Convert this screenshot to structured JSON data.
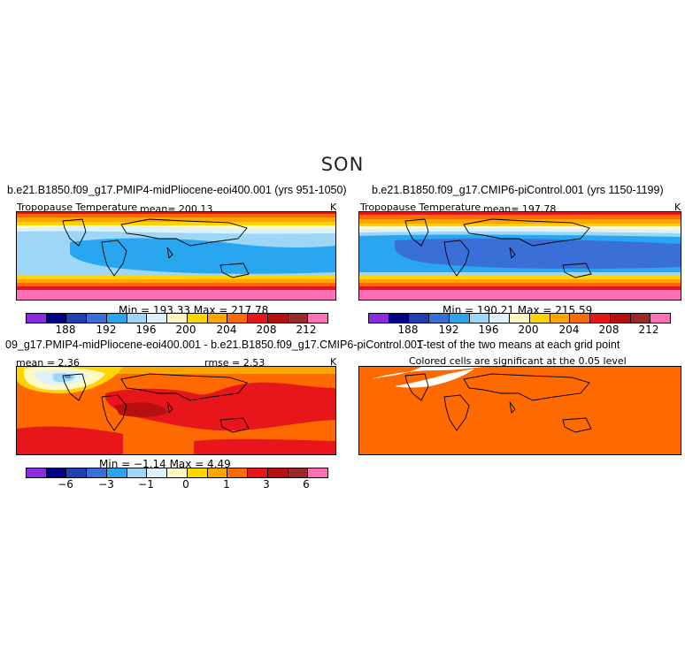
{
  "figure": {
    "season": "SON",
    "colors": {
      "temp_scale": [
        "#8b2be2",
        "#00008b",
        "#1f3fb3",
        "#3a6fd8",
        "#29a6f0",
        "#9ed6f5",
        "#dff2fb",
        "#fff9c4",
        "#ffd400",
        "#ffa500",
        "#ff6a00",
        "#e8151b",
        "#b8100f",
        "#9b2b2b",
        "#ff6fb5"
      ],
      "diff_scale": [
        "#8b2be2",
        "#00008b",
        "#1f3fb3",
        "#3a6fd8",
        "#29a6f0",
        "#9ed6f5",
        "#dff2fb",
        "#fff9c4",
        "#ffd400",
        "#ffa500",
        "#ff6a00",
        "#e8151b",
        "#b8100f",
        "#9b2b2b",
        "#ff6fb5"
      ],
      "ttest_fill": "#ff6a00"
    }
  },
  "panel1": {
    "title": "b.e21.B1850.f09_g17.PMIP4-midPliocene-eoi400.001 (yrs 951-1050)",
    "variable": "Tropopause Temperature",
    "mean": "mean= 200.13",
    "units": "K",
    "minmax": "Min = 193.33  Max = 217.78",
    "ticks": [
      "188",
      "192",
      "196",
      "200",
      "204",
      "208",
      "212"
    ]
  },
  "panel2": {
    "title": "b.e21.B1850.f09_g17.CMIP6-piControl.001 (yrs 1150-1199)",
    "variable": "Tropopause Temperature",
    "mean": "mean= 197.78",
    "units": "K",
    "minmax": "Min = 190.21  Max = 215.59",
    "ticks": [
      "188",
      "192",
      "196",
      "200",
      "204",
      "208",
      "212"
    ]
  },
  "panel3": {
    "title": "09_g17.PMIP4-midPliocene-eoi400.001 - b.e21.B1850.f09_g17.CMIP6-piControl.001",
    "mean": "mean =   2.36",
    "rmse": "rmse =   2.53",
    "units": "K",
    "minmax": "Min =  −1.14  Max =    4.49",
    "ticks": [
      "−6",
      "−3",
      "−1",
      "0",
      "1",
      "3",
      "6"
    ]
  },
  "panel4": {
    "title": "T-test of the two means at each grid point",
    "subtitle": "Colored cells are significant at the 0.05 level"
  }
}
